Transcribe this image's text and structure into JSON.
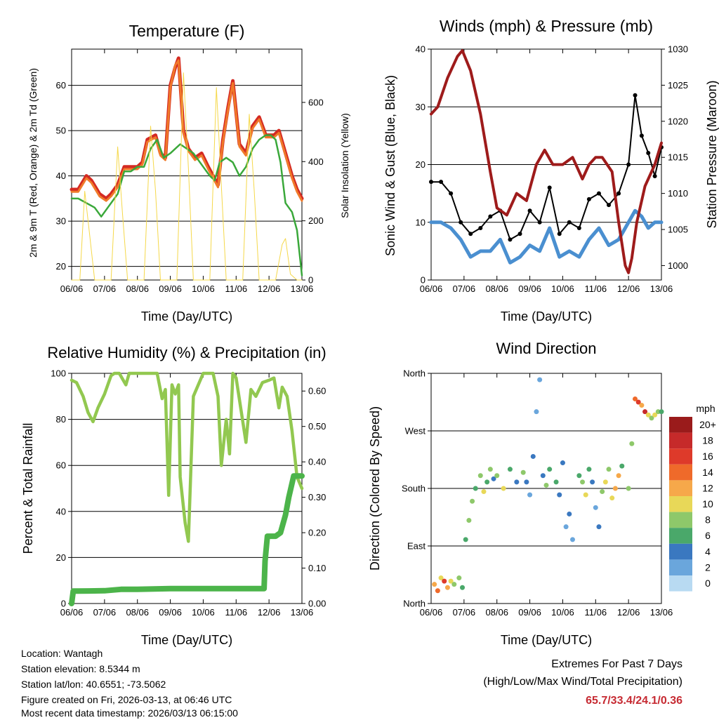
{
  "time_axis": {
    "ticks": [
      "06/06",
      "07/06",
      "08/06",
      "09/06",
      "10/06",
      "11/06",
      "12/06",
      "13/06"
    ],
    "label": "Time (Day/UTC)"
  },
  "chart_data": [
    {
      "id": "temperature",
      "type": "line",
      "title": "Temperature (F)",
      "xlabel": "Time (Day/UTC)",
      "ylabel": "2m & 9m T (Red, Orange) & 2m Td (Green)",
      "y2label": "Solar Insolation (Yellow)",
      "ylim": [
        17,
        68
      ],
      "yticks": [
        20,
        30,
        40,
        50,
        60
      ],
      "y2lim": [
        0,
        780
      ],
      "y2ticks": [
        0,
        200,
        400,
        600
      ],
      "xlim": [
        0,
        7
      ],
      "series": [
        {
          "name": "2m T",
          "color": "#d42a22",
          "x": [
            0,
            0.2,
            0.45,
            0.6,
            0.85,
            1.05,
            1.2,
            1.4,
            1.6,
            1.8,
            2.0,
            2.15,
            2.3,
            2.55,
            2.7,
            2.85,
            3.0,
            3.15,
            3.25,
            3.4,
            3.55,
            3.75,
            3.95,
            4.15,
            4.3,
            4.45,
            4.6,
            4.75,
            4.9,
            5.1,
            5.3,
            5.5,
            5.7,
            5.9,
            6.0,
            6.15,
            6.3,
            6.5,
            6.7,
            6.85,
            7.0
          ],
          "values": [
            37,
            37,
            40,
            39,
            36,
            35,
            36,
            38,
            42,
            42,
            42,
            43,
            48,
            49,
            45,
            44,
            60,
            64,
            66,
            50,
            46,
            44,
            45,
            42,
            40,
            38,
            48,
            55,
            61,
            47,
            45,
            51,
            53,
            49,
            49,
            49,
            50,
            45,
            40,
            37,
            35
          ]
        },
        {
          "name": "9m T",
          "color": "#f07a2a",
          "x": [
            0,
            0.2,
            0.45,
            0.6,
            0.85,
            1.05,
            1.2,
            1.4,
            1.6,
            1.8,
            2.0,
            2.15,
            2.3,
            2.55,
            2.7,
            2.85,
            3.0,
            3.15,
            3.25,
            3.4,
            3.55,
            3.75,
            3.95,
            4.15,
            4.3,
            4.45,
            4.6,
            4.75,
            4.9,
            5.1,
            5.3,
            5.5,
            5.7,
            5.9,
            6.0,
            6.15,
            6.3,
            6.5,
            6.7,
            6.85,
            7.0
          ],
          "values": [
            36.5,
            36.5,
            39.5,
            38.5,
            35.5,
            34.5,
            35.5,
            37.5,
            41.5,
            41.5,
            41.5,
            42.5,
            47.5,
            48.5,
            44.5,
            43.5,
            59.5,
            64.5,
            65.5,
            49.5,
            45.5,
            43.5,
            44.5,
            41.5,
            39.5,
            37.5,
            47.5,
            54.5,
            60.5,
            46.5,
            44.5,
            50.5,
            52.5,
            48.5,
            48.5,
            48.5,
            49.5,
            44.5,
            39.5,
            36.5,
            34.5
          ]
        },
        {
          "name": "2m Td",
          "color": "#3aa83a",
          "x": [
            0,
            0.2,
            0.45,
            0.7,
            0.9,
            1.1,
            1.4,
            1.6,
            1.8,
            2.0,
            2.2,
            2.4,
            2.6,
            2.8,
            3.0,
            3.3,
            3.5,
            3.7,
            4.0,
            4.2,
            4.35,
            4.5,
            4.7,
            4.9,
            5.1,
            5.3,
            5.5,
            5.7,
            5.9,
            6.05,
            6.2,
            6.35,
            6.5,
            6.7,
            6.85,
            7.0
          ],
          "values": [
            35,
            35,
            34,
            33,
            31,
            33,
            36,
            41,
            41,
            42,
            42,
            46,
            48,
            44,
            45,
            47,
            46,
            45,
            42,
            40,
            39,
            43,
            44,
            43,
            40,
            42,
            46,
            48,
            49,
            49,
            48,
            43,
            34,
            32,
            28,
            18
          ]
        },
        {
          "name": "Solar Insolation",
          "color": "#f5d84a",
          "axis": "y2",
          "x": [
            0,
            0.25,
            0.4,
            0.55,
            0.7,
            0.95,
            1.2,
            1.4,
            1.55,
            1.7,
            1.95,
            2.2,
            2.4,
            2.55,
            2.7,
            2.95,
            3.2,
            3.4,
            3.55,
            3.7,
            3.95,
            4.2,
            4.4,
            4.55,
            4.7,
            4.95,
            5.2,
            5.4,
            5.55,
            5.7,
            5.95,
            6.2,
            6.4,
            6.5,
            6.65,
            6.85,
            7.0
          ],
          "values": [
            0,
            0,
            300,
            150,
            0,
            0,
            0,
            450,
            220,
            0,
            0,
            0,
            520,
            300,
            0,
            0,
            0,
            700,
            380,
            0,
            0,
            0,
            650,
            320,
            0,
            0,
            0,
            560,
            300,
            0,
            0,
            0,
            120,
            140,
            20,
            0,
            0
          ]
        }
      ]
    },
    {
      "id": "winds",
      "type": "line",
      "title": "Winds (mph) & Pressure (mb)",
      "xlabel": "Time (Day/UTC)",
      "ylabel": "Sonic Wind & Gust (Blue, Black)",
      "y2label": "Station Pressure (Maroon)",
      "ylim": [
        0,
        40
      ],
      "yticks": [
        0,
        10,
        20,
        30,
        40
      ],
      "y2lim": [
        998,
        1030
      ],
      "y2ticks": [
        1000,
        1005,
        1010,
        1015,
        1020,
        1025,
        1030
      ],
      "xlim": [
        0,
        7
      ],
      "series": [
        {
          "name": "Sonic Wind",
          "color": "#4a8fd0",
          "x": [
            0,
            0.3,
            0.6,
            0.9,
            1.2,
            1.5,
            1.8,
            2.1,
            2.4,
            2.7,
            3.0,
            3.3,
            3.6,
            3.9,
            4.2,
            4.5,
            4.8,
            5.1,
            5.4,
            5.7,
            6.0,
            6.2,
            6.4,
            6.6,
            6.8,
            7.0
          ],
          "values": [
            10,
            10,
            9,
            7,
            4,
            5,
            5,
            7,
            3,
            4,
            6,
            5,
            9,
            4,
            5,
            4,
            7,
            9,
            6,
            7,
            10,
            12,
            11,
            9,
            10,
            10
          ]
        },
        {
          "name": "Gust",
          "color": "#000000",
          "x": [
            0,
            0.3,
            0.6,
            0.9,
            1.2,
            1.5,
            1.8,
            2.1,
            2.4,
            2.7,
            3.0,
            3.3,
            3.6,
            3.9,
            4.2,
            4.5,
            4.8,
            5.1,
            5.4,
            5.7,
            6.0,
            6.2,
            6.4,
            6.6,
            6.8,
            7.0
          ],
          "values": [
            17,
            17,
            15,
            10,
            8,
            9,
            11,
            12,
            7,
            8,
            12,
            10,
            16,
            8,
            10,
            9,
            14,
            15,
            13,
            15,
            20,
            32,
            25,
            22,
            18,
            23
          ]
        },
        {
          "name": "Station Pressure",
          "color": "#9e1b1b",
          "axis": "y2",
          "x": [
            0,
            0.2,
            0.5,
            0.8,
            0.95,
            1.2,
            1.5,
            1.8,
            2.0,
            2.3,
            2.6,
            2.9,
            3.2,
            3.45,
            3.7,
            4.0,
            4.3,
            4.6,
            4.8,
            5.0,
            5.2,
            5.5,
            5.7,
            5.9,
            6.0,
            6.1,
            6.25,
            6.5,
            6.8,
            7.0
          ],
          "values": [
            1021,
            1022,
            1026,
            1029,
            1029.8,
            1027,
            1021,
            1013,
            1008,
            1007,
            1010,
            1009,
            1014,
            1016,
            1014,
            1014,
            1015,
            1012,
            1014,
            1015,
            1015,
            1013,
            1006,
            1000,
            999,
            1001,
            1006,
            1011,
            1014,
            1017
          ]
        }
      ]
    },
    {
      "id": "humidity",
      "type": "line",
      "title": "Relative Humidity (%) & Precipitation (in)",
      "xlabel": "Time (Day/UTC)",
      "ylabel": "Percent & Total Rainfall",
      "ylim": [
        0,
        100
      ],
      "yticks": [
        0,
        20,
        40,
        60,
        80,
        100
      ],
      "y2lim": [
        0,
        0.65
      ],
      "y2ticks": [
        "0.00",
        "0.10",
        "0.20",
        "0.30",
        "0.40",
        "0.50",
        "0.60"
      ],
      "xlim": [
        0,
        7
      ],
      "series": [
        {
          "name": "Relative Humidity",
          "color": "#92c850",
          "x": [
            0,
            0.15,
            0.35,
            0.5,
            0.65,
            0.8,
            1.0,
            1.2,
            1.3,
            1.45,
            1.65,
            1.75,
            1.85,
            2.0,
            2.3,
            2.6,
            2.75,
            2.85,
            2.95,
            3.05,
            3.15,
            3.25,
            3.3,
            3.45,
            3.55,
            3.7,
            3.85,
            4.0,
            4.3,
            4.45,
            4.55,
            4.7,
            4.8,
            4.9,
            5.0,
            5.3,
            5.45,
            5.6,
            5.8,
            6.0,
            6.15,
            6.3,
            6.4,
            6.55,
            6.7,
            6.85,
            7.0
          ],
          "values": [
            97,
            96,
            90,
            83,
            79,
            85,
            91,
            99,
            100,
            100,
            95,
            100,
            100,
            100,
            100,
            100,
            89,
            93,
            47,
            95,
            91,
            95,
            55,
            35,
            27,
            90,
            95,
            100,
            100,
            90,
            60,
            80,
            65,
            100,
            98,
            70,
            93,
            90,
            96,
            97,
            98,
            85,
            94,
            90,
            75,
            55,
            50
          ]
        },
        {
          "name": "Total Precipitation",
          "color": "#4cb44a",
          "axis": "y2",
          "x": [
            0,
            0.05,
            0.2,
            1.0,
            1.5,
            2.0,
            3.0,
            4.0,
            5.0,
            5.85,
            5.88,
            5.95,
            6.0,
            6.2,
            6.35,
            6.5,
            6.6,
            6.75,
            6.9,
            7.0
          ],
          "values": [
            0,
            0.035,
            0.035,
            0.036,
            0.04,
            0.04,
            0.042,
            0.042,
            0.042,
            0.042,
            0.12,
            0.19,
            0.19,
            0.19,
            0.2,
            0.25,
            0.3,
            0.36,
            0.36,
            0.36
          ]
        }
      ]
    },
    {
      "id": "direction",
      "type": "scatter",
      "title": "Wind Direction",
      "xlabel": "Time (Day/UTC)",
      "ylabel": "Direction (Colored By Speed)",
      "ylim": [
        0,
        360
      ],
      "yticklabels": [
        "North",
        "East",
        "South",
        "West",
        "North"
      ],
      "yticks": [
        0,
        90,
        180,
        270,
        360
      ],
      "xlim": [
        0,
        7
      ],
      "colorbar": {
        "title": "mph",
        "labels": [
          "20+",
          "18",
          "16",
          "14",
          "12",
          "10",
          "8",
          "6",
          "4",
          "2",
          "0"
        ],
        "colors": [
          "#9a1b1b",
          "#c62a2a",
          "#de3a2a",
          "#ef6a2a",
          "#f6a84a",
          "#e8d858",
          "#8ec86a",
          "#4aa86a",
          "#3a78c0",
          "#6aa6dc",
          "#b8daf2"
        ]
      },
      "x": [
        0.1,
        0.2,
        0.3,
        0.4,
        0.5,
        0.6,
        0.7,
        0.85,
        0.95,
        1.05,
        1.15,
        1.25,
        1.35,
        1.5,
        1.6,
        1.7,
        1.8,
        1.9,
        2.0,
        2.2,
        2.4,
        2.6,
        2.8,
        2.9,
        3.0,
        3.1,
        3.2,
        3.3,
        3.4,
        3.5,
        3.6,
        3.8,
        3.9,
        4.0,
        4.1,
        4.2,
        4.3,
        4.5,
        4.6,
        4.7,
        4.8,
        4.9,
        5.0,
        5.1,
        5.2,
        5.3,
        5.4,
        5.5,
        5.6,
        5.7,
        5.8,
        6.0,
        6.1,
        6.2,
        6.3,
        6.4,
        6.5,
        6.6,
        6.7,
        6.8,
        6.9,
        7.0
      ],
      "values": [
        30,
        20,
        40,
        35,
        25,
        35,
        30,
        40,
        25,
        100,
        130,
        160,
        180,
        200,
        175,
        190,
        210,
        195,
        200,
        180,
        210,
        190,
        205,
        190,
        170,
        230,
        300,
        350,
        200,
        185,
        210,
        190,
        170,
        220,
        120,
        140,
        100,
        200,
        190,
        170,
        210,
        190,
        150,
        120,
        175,
        190,
        210,
        165,
        180,
        200,
        215,
        180,
        250,
        320,
        315,
        310,
        300,
        295,
        290,
        295,
        300,
        300
      ],
      "speeds": [
        12,
        14,
        10,
        16,
        12,
        10,
        8,
        7,
        6,
        6,
        7,
        8,
        5,
        8,
        10,
        6,
        7,
        4,
        8,
        10,
        6,
        4,
        7,
        3,
        1,
        4,
        2,
        1,
        3,
        7,
        6,
        5,
        3,
        4,
        2,
        3,
        2,
        5,
        7,
        9,
        6,
        4,
        2,
        3,
        8,
        10,
        7,
        9,
        12,
        11,
        6,
        7,
        8,
        14,
        16,
        12,
        18,
        10,
        8,
        9,
        7,
        6
      ]
    }
  ],
  "info": {
    "location": "Location: Wantagh",
    "elevation": "Station elevation: 8.5344 m",
    "latlon": "Station lat/lon: 40.6551; -73.5062",
    "created": "Figure created on Fri, 2026-03-13, at 06:46 UTC",
    "recent": "Most recent data timestamp: 2026/03/13 06:15:00"
  },
  "extremes": {
    "title": "Extremes For Past 7 Days",
    "subtitle": "(High/Low/Max Wind/Total Precipitation)",
    "values": "65.7/33.4/24.1/0.36"
  }
}
